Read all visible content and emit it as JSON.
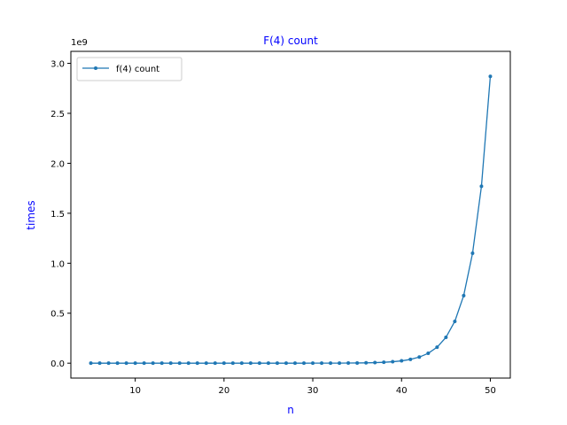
{
  "chart_data": {
    "type": "line",
    "title": "F(4) count",
    "xlabel": "n",
    "ylabel": "times",
    "y_offset_label": "1e9",
    "label_color": "#0000ff",
    "series_color": "#1f77b4",
    "legend_placement": "top-left",
    "grid": false,
    "xlim": [
      2.75,
      52.25
    ],
    "ylim": [
      -0.149,
      3.12
    ],
    "x_ticks": [
      10,
      20,
      30,
      40,
      50
    ],
    "y_ticks": [
      0.0,
      0.5,
      1.0,
      1.5,
      2.0,
      2.5,
      3.0
    ],
    "x_tick_labels": [
      "10",
      "20",
      "30",
      "40",
      "50"
    ],
    "y_tick_labels": [
      "0.0",
      "0.5",
      "1.0",
      "1.5",
      "2.0",
      "2.5",
      "3.0"
    ],
    "series": [
      {
        "name": "f(4) count",
        "x": [
          5,
          6,
          7,
          8,
          9,
          10,
          11,
          12,
          13,
          14,
          15,
          16,
          17,
          18,
          19,
          20,
          21,
          22,
          23,
          24,
          25,
          26,
          27,
          28,
          29,
          30,
          31,
          32,
          33,
          34,
          35,
          36,
          37,
          38,
          39,
          40,
          41,
          42,
          43,
          44,
          45,
          46,
          47,
          48,
          49,
          50
        ],
        "y": [
          0,
          0,
          0,
          0,
          0,
          0,
          0,
          0,
          0,
          0,
          0,
          0,
          0,
          0,
          0,
          0,
          0,
          0,
          0,
          0,
          0,
          0,
          0,
          0,
          0.0001,
          0.0002,
          0.0003,
          0.0005,
          0.0008,
          0.0013,
          0.0021,
          0.0034,
          0.0055,
          0.0089,
          0.0144,
          0.0233,
          0.0377,
          0.061,
          0.0987,
          0.1597,
          0.2584,
          0.4181,
          0.6765,
          1.1,
          1.77,
          2.87
        ]
      }
    ]
  }
}
